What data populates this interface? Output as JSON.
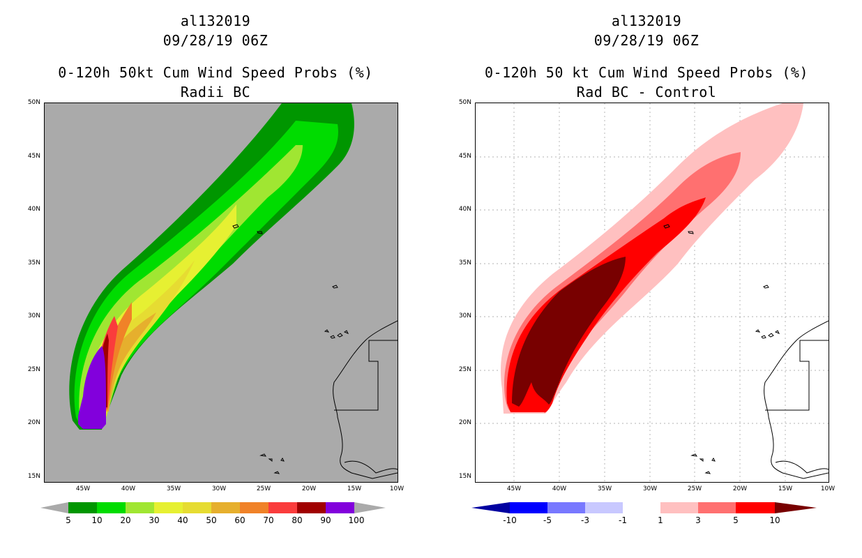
{
  "left_panel": {
    "title_line1": "al132019",
    "title_line2": "09/28/19 06Z",
    "title_line3": "0-120h 50kt Cum Wind Speed Probs (%)",
    "title_line4": "Radii BC",
    "lat_ticks": [
      "50N",
      "45N",
      "40N",
      "35N",
      "30N",
      "25N",
      "20N",
      "15N"
    ],
    "lon_ticks": [
      "45W",
      "40W",
      "35W",
      "30W",
      "25W",
      "20W",
      "15W",
      "10W"
    ],
    "colorbar": {
      "labels": [
        "5",
        "10",
        "20",
        "30",
        "40",
        "50",
        "60",
        "70",
        "80",
        "90",
        "100"
      ],
      "colors": [
        "#009600",
        "#00dc00",
        "#a0e632",
        "#e6f032",
        "#e6dc32",
        "#e6af2d",
        "#f08228",
        "#fa3c3c",
        "#a00000",
        "#8200dc"
      ]
    },
    "background_color": "#aaaaaa"
  },
  "right_panel": {
    "title_line1": "al132019",
    "title_line2": "09/28/19 06Z",
    "title_line3": "0-120h 50 kt Cum Wind Speed Probs (%)",
    "title_line4": "Rad BC - Control",
    "lat_ticks": [
      "50N",
      "45N",
      "40N",
      "35N",
      "30N",
      "25N",
      "20N",
      "15N"
    ],
    "lon_ticks": [
      "45W",
      "40W",
      "35W",
      "30W",
      "25W",
      "20W",
      "15W",
      "10W"
    ],
    "colorbar": {
      "labels": [
        "-10",
        "-5",
        "-3",
        "-1",
        "1",
        "3",
        "5",
        "10"
      ],
      "colors": [
        "#0000a0",
        "#0000ff",
        "#7878ff",
        "#c8c8ff",
        "#ffffff",
        "#ffc0c0",
        "#ff7070",
        "#ff0000",
        "#780000"
      ]
    }
  },
  "chart_data": {
    "type": "map",
    "lat_range": [
      15,
      50
    ],
    "lon_range": [
      -48,
      -10
    ],
    "grid": "dotted (right panel)"
  }
}
